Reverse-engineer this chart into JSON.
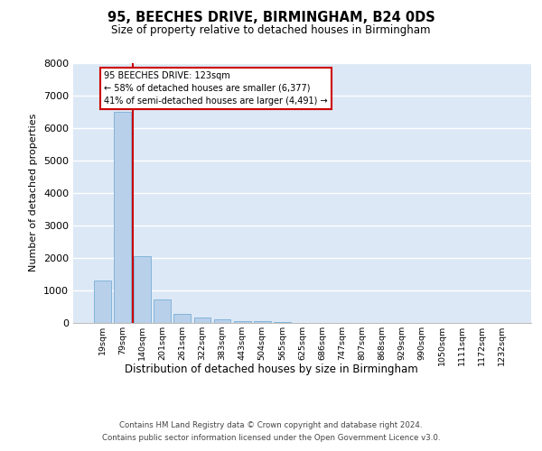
{
  "title": "95, BEECHES DRIVE, BIRMINGHAM, B24 0DS",
  "subtitle": "Size of property relative to detached houses in Birmingham",
  "xlabel": "Distribution of detached houses by size in Birmingham",
  "ylabel": "Number of detached properties",
  "bar_color": "#b8d0ea",
  "bar_edge_color": "#7aaed6",
  "background_color": "#dce8f5",
  "grid_color": "#ffffff",
  "categories": [
    "19sqm",
    "79sqm",
    "140sqm",
    "201sqm",
    "261sqm",
    "322sqm",
    "383sqm",
    "443sqm",
    "504sqm",
    "565sqm",
    "625sqm",
    "686sqm",
    "747sqm",
    "807sqm",
    "868sqm",
    "929sqm",
    "990sqm",
    "1050sqm",
    "1111sqm",
    "1172sqm",
    "1232sqm"
  ],
  "values": [
    1300,
    6500,
    2050,
    700,
    270,
    150,
    100,
    55,
    50,
    5,
    0,
    0,
    0,
    0,
    0,
    0,
    0,
    0,
    0,
    0,
    0
  ],
  "ylim": [
    0,
    8000
  ],
  "yticks": [
    0,
    1000,
    2000,
    3000,
    4000,
    5000,
    6000,
    7000,
    8000
  ],
  "property_line_color": "#cc0000",
  "annotation_line1": "95 BEECHES DRIVE: 123sqm",
  "annotation_line2": "← 58% of detached houses are smaller (6,377)",
  "annotation_line3": "41% of semi-detached houses are larger (4,491) →",
  "footer_line1": "Contains HM Land Registry data © Crown copyright and database right 2024.",
  "footer_line2": "Contains public sector information licensed under the Open Government Licence v3.0."
}
